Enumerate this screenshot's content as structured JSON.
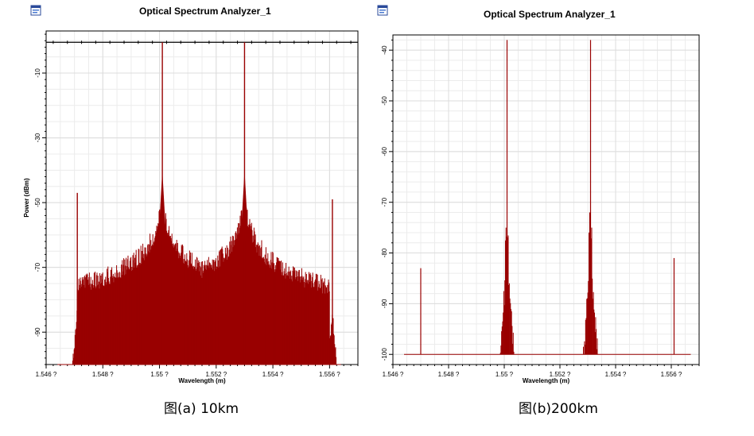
{
  "colors": {
    "series": "#990000",
    "grid": "#dcdcdc",
    "axis": "#000000"
  },
  "panels": [
    {
      "title": "Optical Spectrum Analyzer_1",
      "caption": "图(a) 10km",
      "icon": "window-app-icon"
    },
    {
      "title": "Optical Spectrum Analyzer_1",
      "caption": "图(b)200km",
      "icon": "window-app-icon"
    }
  ],
  "chart_data": [
    {
      "type": "line",
      "title": "Optical Spectrum Analyzer_1",
      "xlabel": "Wavelength (m)",
      "ylabel": "Power (dBm)",
      "xlim": [
        1.546,
        1.557
      ],
      "ylim": [
        -100,
        3
      ],
      "x_ticks": [
        1.546,
        1.548,
        1.55,
        1.552,
        1.554,
        1.556
      ],
      "x_tick_labels": [
        "1.546 ?",
        "1.548 ?",
        "1.55 ?",
        "1.552 ?",
        "1.554 ?",
        "1.556 ?"
      ],
      "y_ticks": [
        -10,
        -30,
        -50,
        -70,
        -90
      ],
      "y_tick_labels": [
        "-10",
        "-30",
        "-50",
        "-70",
        "-90"
      ],
      "grid": true,
      "noise_floor": -100,
      "top_reference_line": -0.5,
      "series": [
        {
          "peaks": [
            {
              "x": 1.5471,
              "y": -47
            },
            {
              "x": 1.5501,
              "y": -0.5
            },
            {
              "x": 1.553,
              "y": -0.5
            },
            {
              "x": 1.5561,
              "y": -49
            }
          ],
          "noise_pedestal": {
            "x_range": [
              1.5475,
              1.5557
            ],
            "level": [
              -80,
              -75
            ]
          }
        }
      ]
    },
    {
      "type": "line",
      "title": "Optical Spectrum Analyzer_1",
      "xlabel": "Wavelength (m)",
      "ylabel": "Power (dBm)",
      "xlim": [
        1.546,
        1.557
      ],
      "ylim": [
        -102,
        -37
      ],
      "x_ticks": [
        1.546,
        1.548,
        1.55,
        1.552,
        1.554,
        1.556
      ],
      "x_tick_labels": [
        "1.546 ?",
        "1.548 ?",
        "1.55 ?",
        "1.552 ?",
        "1.554 ?",
        "1.556 ?"
      ],
      "y_ticks": [
        -40,
        -50,
        -60,
        -70,
        -80,
        -90,
        -100
      ],
      "y_tick_labels": [
        "-40",
        "-50",
        "-60",
        "-70",
        "-80",
        "-90",
        "-100"
      ],
      "grid": true,
      "noise_floor": -100,
      "series": [
        {
          "peaks": [
            {
              "x": 1.547,
              "y": -83
            },
            {
              "x": 1.5501,
              "y": -38
            },
            {
              "x": 1.5531,
              "y": -38
            },
            {
              "x": 1.5561,
              "y": -81
            }
          ]
        }
      ]
    }
  ]
}
